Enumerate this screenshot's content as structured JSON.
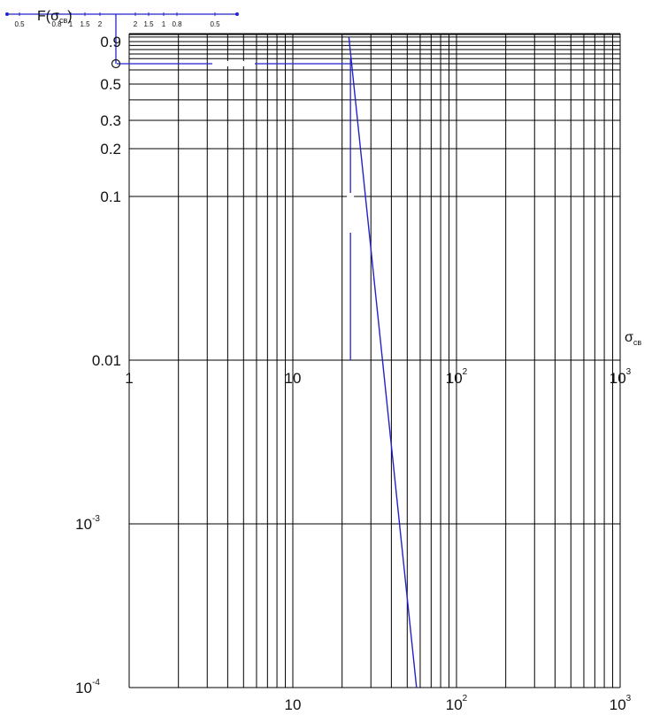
{
  "chart_data": {
    "type": "line",
    "title": "",
    "xlabel": {
      "main": "σ",
      "sub": "св"
    },
    "ylabel": {
      "main": "F(σ",
      "sub": "св",
      "close": ")"
    },
    "x_scale": "log",
    "y_scale": "probability",
    "xlim": [
      1,
      1000
    ],
    "ylim": [
      0.0001,
      0.99
    ],
    "grid": true,
    "y_ticks": [
      {
        "value": 0.9,
        "label": "0.9"
      },
      {
        "value": 0.5,
        "label": "0.5"
      },
      {
        "value": 0.3,
        "label": "0.3"
      },
      {
        "value": 0.2,
        "label": "0.2"
      },
      {
        "value": 0.1,
        "label": "0.1"
      },
      {
        "value": 0.01,
        "label": "0.01"
      },
      {
        "value": 0.001,
        "label": "10",
        "exp": "-3"
      },
      {
        "value": 0.0001,
        "label": "10",
        "exp": "-4"
      }
    ],
    "x_ticks_middle": [
      {
        "value": 1,
        "label": "1"
      },
      {
        "value": 10,
        "label": "10"
      },
      {
        "value": 100,
        "label": "10",
        "exp": "2"
      },
      {
        "value": 1000,
        "label": "10",
        "exp": "3"
      }
    ],
    "x_ticks_bottom": [
      {
        "value": 10,
        "label": "10"
      },
      {
        "value": 100,
        "label": "10",
        "exp": "2"
      },
      {
        "value": 1000,
        "label": "10",
        "exp": "3"
      }
    ],
    "top_scale_labels": [
      "0.5",
      "0.8",
      "1",
      "1.5",
      "2",
      "2",
      "1.5",
      "1",
      "0.8",
      "0.5"
    ],
    "series": [
      {
        "x": [
          22,
          57
        ],
        "y": [
          0.95,
          0.0001
        ]
      }
    ],
    "reference_lines": [
      {
        "type": "horizontal",
        "y": 0.65,
        "x_start": 1,
        "x_end": 22
      },
      {
        "type": "vertical",
        "x": 22.5,
        "y_start": 0.7,
        "y_end": 0.01
      },
      {
        "type": "vertical",
        "x": 1,
        "y_start": 0.99,
        "y_end": 0.65
      }
    ],
    "colors": {
      "series": "#2222cc",
      "grid": "#000000",
      "text": "#111111"
    }
  }
}
